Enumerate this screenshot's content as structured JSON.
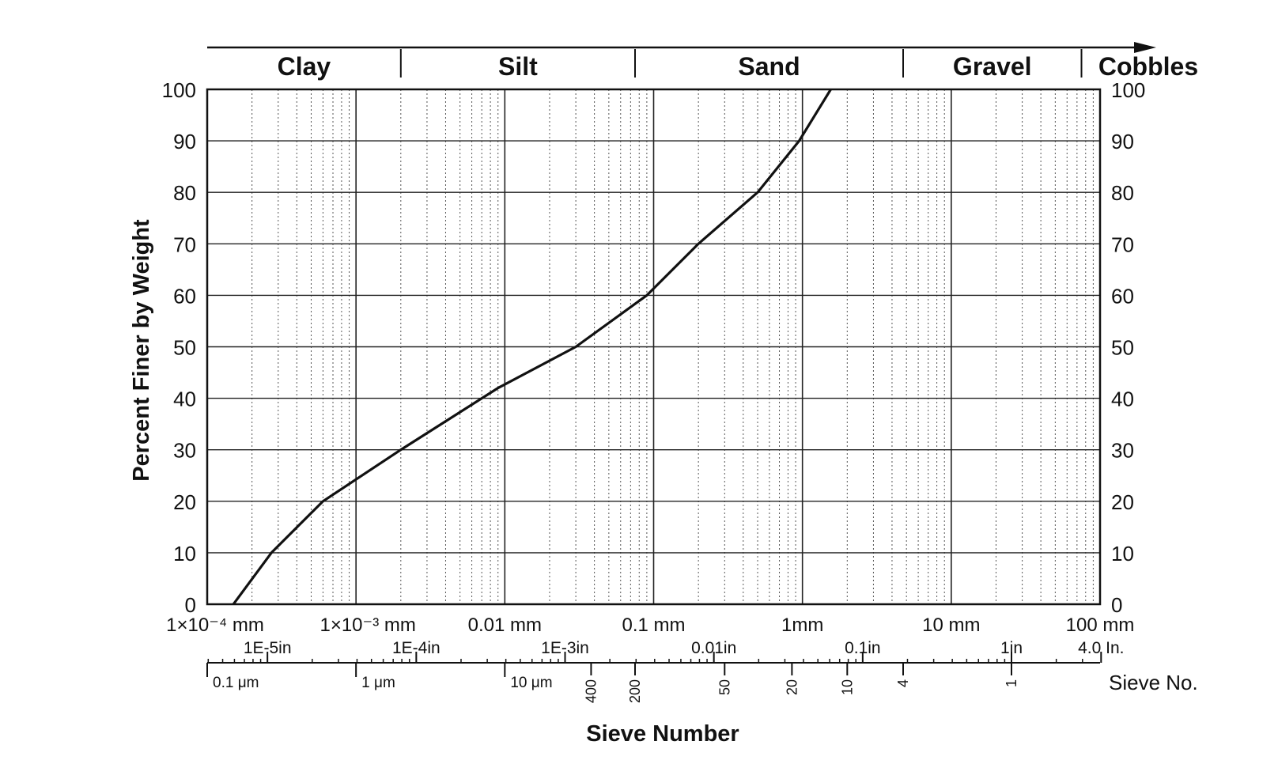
{
  "chart_data": {
    "type": "line",
    "ylabel": "Percent Finer by Weight",
    "xlabel": "Sieve Number",
    "x_scale": "log",
    "x_unit": "mm",
    "xlim": [
      0.0001,
      100
    ],
    "ylim": [
      0,
      100
    ],
    "grid": true,
    "y_ticks": [
      0,
      10,
      20,
      30,
      40,
      50,
      60,
      70,
      80,
      90,
      100
    ],
    "x_ticks_mm": [
      {
        "value": 0.0001,
        "label": "1×10⁻⁴ mm"
      },
      {
        "value": 0.001,
        "label": "1×10⁻³ mm"
      },
      {
        "value": 0.01,
        "label": "0.01 mm"
      },
      {
        "value": 0.1,
        "label": "0.1 mm"
      },
      {
        "value": 1,
        "label": "1mm"
      },
      {
        "value": 10,
        "label": "10 mm"
      },
      {
        "value": 100,
        "label": "100 mm"
      }
    ],
    "x_ticks_in": [
      {
        "value": 0.000254,
        "label": "1E-5in"
      },
      {
        "value": 0.00254,
        "label": "1E-4in"
      },
      {
        "value": 0.0254,
        "label": "1E-3in"
      },
      {
        "value": 0.254,
        "label": "0.01in"
      },
      {
        "value": 2.54,
        "label": "0.1in"
      },
      {
        "value": 25.4,
        "label": "1in"
      },
      {
        "value": 101.6,
        "label": "4.0 In."
      }
    ],
    "x_ticks_um": [
      {
        "value": 0.0001,
        "label": "0.1 μm"
      },
      {
        "value": 0.001,
        "label": "1 μm"
      },
      {
        "value": 0.01,
        "label": "10 μm"
      }
    ],
    "sieve_ticks": [
      {
        "value": 0.038,
        "label": "400"
      },
      {
        "value": 0.075,
        "label": "200"
      },
      {
        "value": 0.3,
        "label": "50"
      },
      {
        "value": 0.85,
        "label": "20"
      },
      {
        "value": 2.0,
        "label": "10"
      },
      {
        "value": 4.75,
        "label": "4"
      },
      {
        "value": 25.4,
        "label": "1"
      }
    ],
    "sieve_scale_label": "Sieve No.",
    "soil_classes": [
      {
        "name": "Clay",
        "from": 0.0001,
        "to": 0.002
      },
      {
        "name": "Silt",
        "from": 0.002,
        "to": 0.075
      },
      {
        "name": "Sand",
        "from": 0.075,
        "to": 4.75
      },
      {
        "name": "Gravel",
        "from": 4.75,
        "to": 75
      },
      {
        "name": "Cobbles",
        "from": 75,
        "to": 100
      }
    ],
    "series": [
      {
        "x": [
          0.00015,
          0.00027,
          0.0006,
          0.002,
          0.009,
          0.03,
          0.09,
          0.2,
          0.5,
          0.95,
          1.55
        ],
        "y": [
          0,
          10,
          20,
          30,
          42,
          50,
          60,
          70,
          80,
          90,
          100
        ]
      }
    ]
  }
}
